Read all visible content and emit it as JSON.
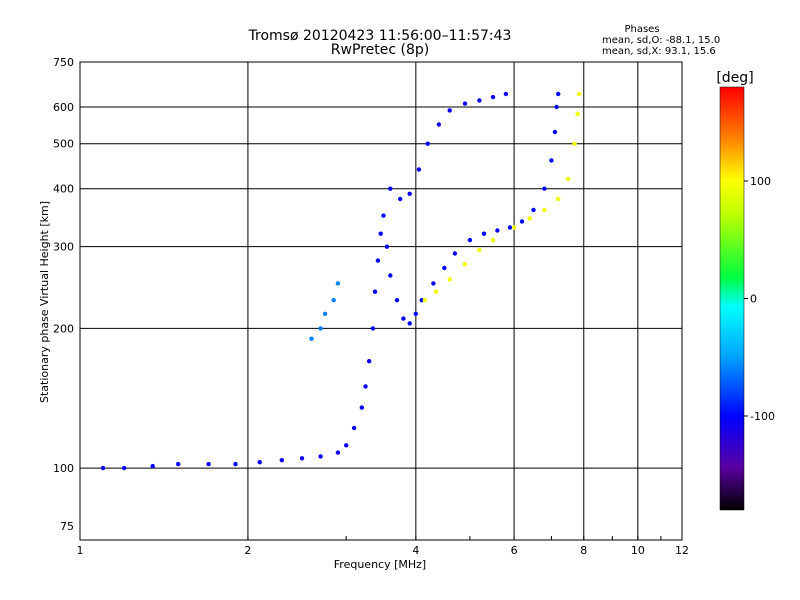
{
  "chart_data": {
    "type": "scatter",
    "title": "Tromsø 20120423 11:56:00–11:57:43",
    "subtitle": "RwPretec (8p)",
    "xlabel": "Frequency [MHz]",
    "ylabel": "Stationary phase Virtual Height [km]",
    "xscale": "log",
    "yscale": "log",
    "xlim": [
      1,
      12
    ],
    "ylim": [
      70,
      750
    ],
    "xticks": [
      1,
      2,
      4,
      6,
      8,
      10,
      12
    ],
    "xtick_labels": [
      "1",
      "2",
      "4",
      "6",
      "8",
      "10",
      "12"
    ],
    "yticks": [
      75,
      100,
      200,
      300,
      400,
      500,
      600,
      750
    ],
    "ytick_labels": [
      "75",
      "100",
      "200",
      "300",
      "400",
      "500",
      "600",
      "750"
    ],
    "grid": true,
    "phases_box": {
      "title": "Phases",
      "line1": "mean, sd,O:  -88.1, 15.0",
      "line2": "mean, sd,X:   93.1, 15.6"
    },
    "colorbar": {
      "label": "[deg]",
      "range": [
        -180,
        180
      ],
      "ticks": [
        100,
        0,
        -100
      ],
      "tick_labels": [
        "100",
        "0",
        "-100"
      ]
    },
    "traces": [
      {
        "points": [
          [
            1.1,
            100
          ],
          [
            1.2,
            100
          ],
          [
            1.35,
            101
          ],
          [
            1.5,
            102
          ],
          [
            1.7,
            102
          ],
          [
            1.9,
            102
          ],
          [
            2.1,
            103
          ],
          [
            2.3,
            104
          ],
          [
            2.5,
            105
          ],
          [
            2.7,
            106
          ],
          [
            2.9,
            108
          ],
          [
            3.0,
            112
          ],
          [
            3.1,
            122
          ],
          [
            3.2,
            135
          ],
          [
            3.25,
            150
          ],
          [
            3.3,
            170
          ]
        ],
        "phase": -105
      },
      {
        "points": [
          [
            3.35,
            200
          ],
          [
            3.38,
            240
          ],
          [
            3.42,
            280
          ],
          [
            3.46,
            320
          ],
          [
            3.5,
            350
          ],
          [
            3.55,
            300
          ],
          [
            3.6,
            260
          ],
          [
            3.7,
            230
          ],
          [
            3.8,
            210
          ],
          [
            3.9,
            205
          ],
          [
            4.0,
            215
          ],
          [
            4.1,
            230
          ],
          [
            4.3,
            250
          ],
          [
            4.5,
            270
          ],
          [
            4.7,
            290
          ],
          [
            5.0,
            310
          ],
          [
            5.3,
            320
          ],
          [
            5.6,
            325
          ],
          [
            5.9,
            330
          ],
          [
            6.2,
            340
          ],
          [
            6.5,
            360
          ],
          [
            6.8,
            400
          ],
          [
            7.0,
            460
          ],
          [
            7.1,
            530
          ],
          [
            7.15,
            600
          ],
          [
            7.2,
            640
          ]
        ],
        "phase": -100
      },
      {
        "points": [
          [
            3.6,
            400
          ],
          [
            3.75,
            380
          ],
          [
            3.9,
            390
          ],
          [
            4.05,
            440
          ],
          [
            4.2,
            500
          ],
          [
            4.4,
            550
          ],
          [
            4.6,
            590
          ],
          [
            4.9,
            610
          ],
          [
            5.2,
            620
          ],
          [
            5.5,
            630
          ],
          [
            5.8,
            640
          ]
        ],
        "phase": -105
      },
      {
        "points": [
          [
            4.15,
            230
          ],
          [
            4.35,
            240
          ],
          [
            4.6,
            255
          ],
          [
            4.9,
            275
          ],
          [
            5.2,
            295
          ],
          [
            5.5,
            310
          ],
          [
            6.0,
            330
          ],
          [
            6.4,
            345
          ],
          [
            6.8,
            360
          ],
          [
            7.2,
            380
          ],
          [
            7.5,
            420
          ],
          [
            7.7,
            500
          ],
          [
            7.8,
            580
          ],
          [
            7.85,
            640
          ]
        ],
        "phase": 95
      },
      {
        "points": [
          [
            2.6,
            190
          ],
          [
            2.7,
            200
          ],
          [
            2.75,
            215
          ],
          [
            2.85,
            230
          ],
          [
            2.9,
            250
          ]
        ],
        "phase": -60
      }
    ]
  }
}
